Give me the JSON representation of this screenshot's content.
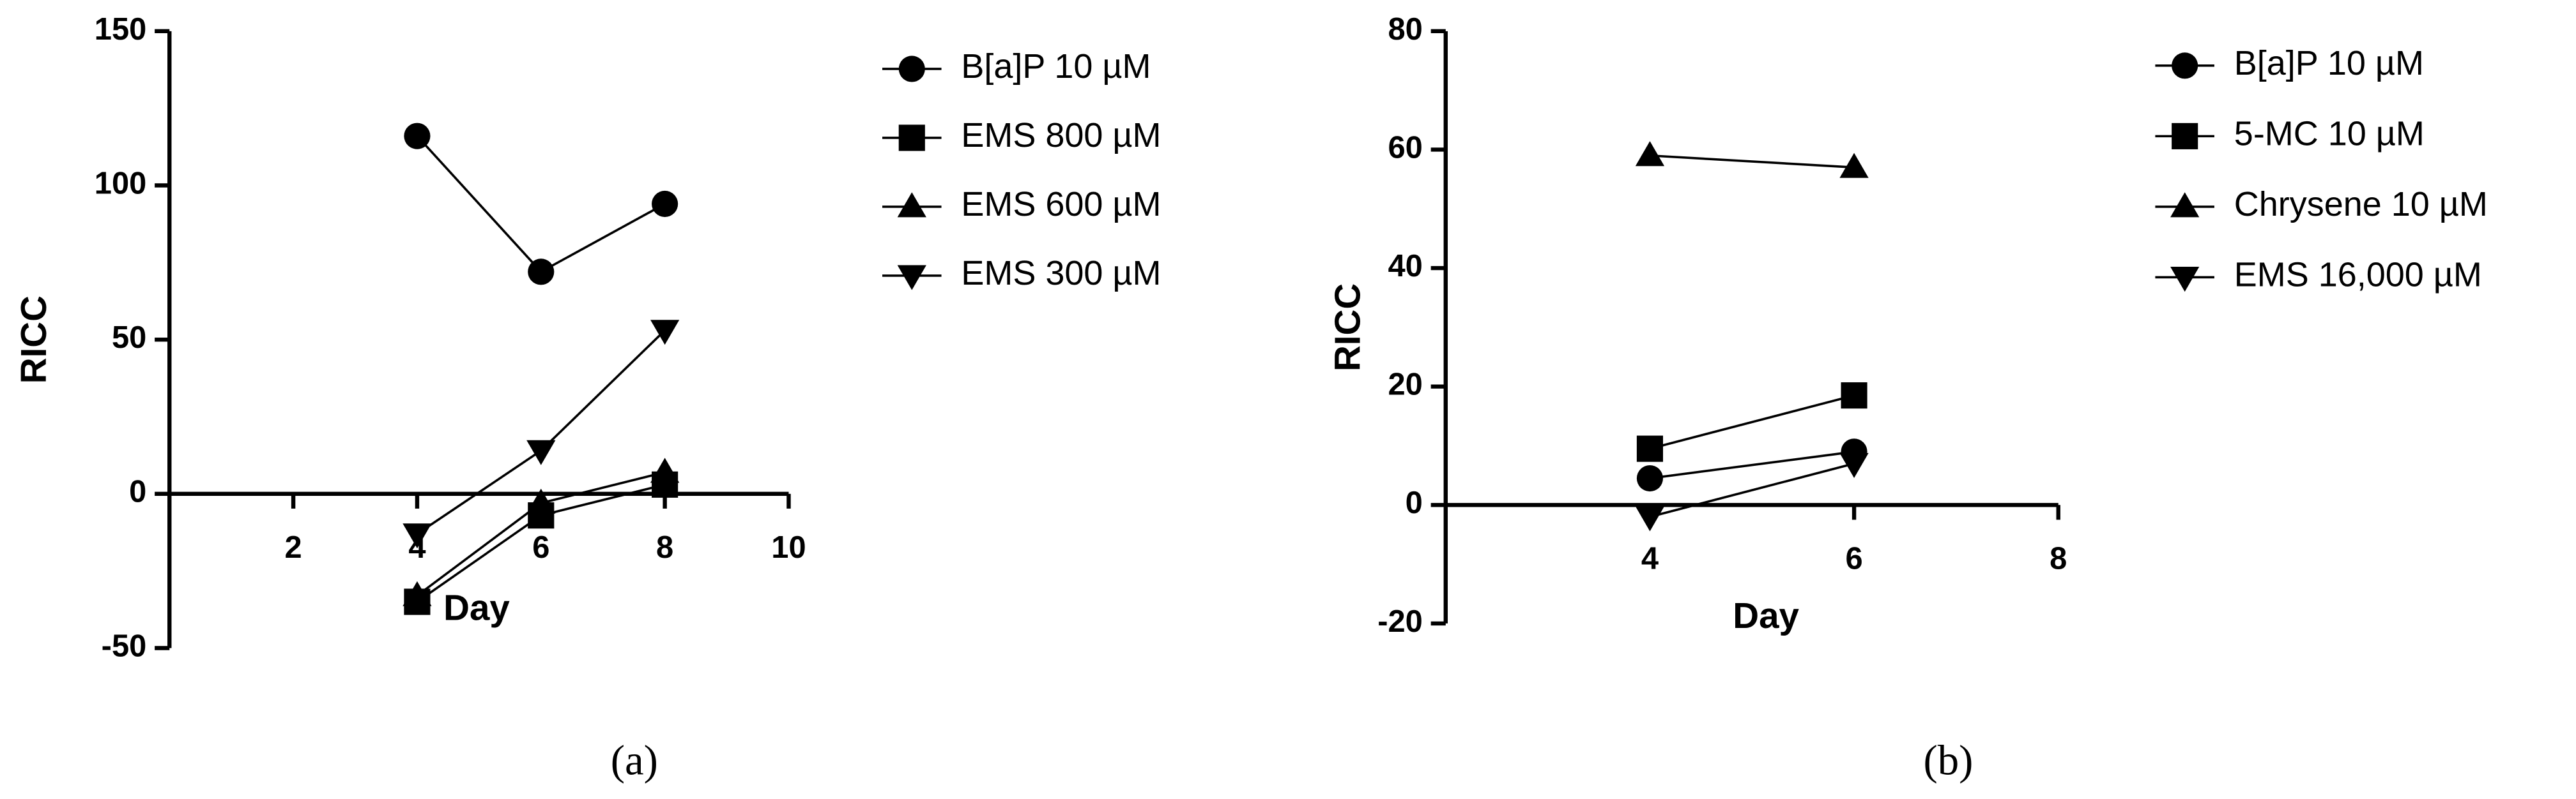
{
  "chart_data": [
    {
      "type": "line",
      "panel": "(a)",
      "xlabel": "Day",
      "ylabel": "RICC",
      "x": [
        4,
        6,
        8
      ],
      "xlim": [
        0,
        10
      ],
      "xticks": [
        2,
        4,
        6,
        8,
        10
      ],
      "ylim": [
        -50,
        150
      ],
      "yticks": [
        -50,
        0,
        50,
        100,
        150
      ],
      "series": [
        {
          "name": "B[a]P 10 µM",
          "marker": "circle",
          "color": "#000000",
          "values": [
            116,
            72,
            94
          ]
        },
        {
          "name": "EMS 800 µM",
          "marker": "square",
          "color": "#000000",
          "values": [
            -35,
            -7,
            3
          ]
        },
        {
          "name": "EMS 600 µM",
          "marker": "triangle-up",
          "color": "#000000",
          "values": [
            -33,
            -3,
            7
          ]
        },
        {
          "name": "EMS 300 µM",
          "marker": "triangle-down",
          "color": "#000000",
          "values": [
            -13,
            14,
            53
          ]
        }
      ]
    },
    {
      "type": "line",
      "panel": "(b)",
      "xlabel": "Day",
      "ylabel": "RICC",
      "x": [
        4,
        6
      ],
      "xlim": [
        2,
        8
      ],
      "xticks": [
        4,
        6,
        8
      ],
      "ylim": [
        -20,
        80
      ],
      "yticks": [
        -20,
        0,
        20,
        40,
        60,
        80
      ],
      "series": [
        {
          "name": "B[a]P 10 µM",
          "marker": "circle",
          "color": "#000000",
          "values": [
            4.5,
            9
          ]
        },
        {
          "name": "5-MC 10 µM",
          "marker": "square",
          "color": "#000000",
          "values": [
            9.5,
            18.5
          ]
        },
        {
          "name": "Chrysene 10 µM",
          "marker": "triangle-up",
          "color": "#000000",
          "values": [
            59,
            57
          ]
        },
        {
          "name": "EMS 16,000 µM",
          "marker": "triangle-down",
          "color": "#000000",
          "values": [
            -2,
            7
          ]
        }
      ]
    }
  ]
}
